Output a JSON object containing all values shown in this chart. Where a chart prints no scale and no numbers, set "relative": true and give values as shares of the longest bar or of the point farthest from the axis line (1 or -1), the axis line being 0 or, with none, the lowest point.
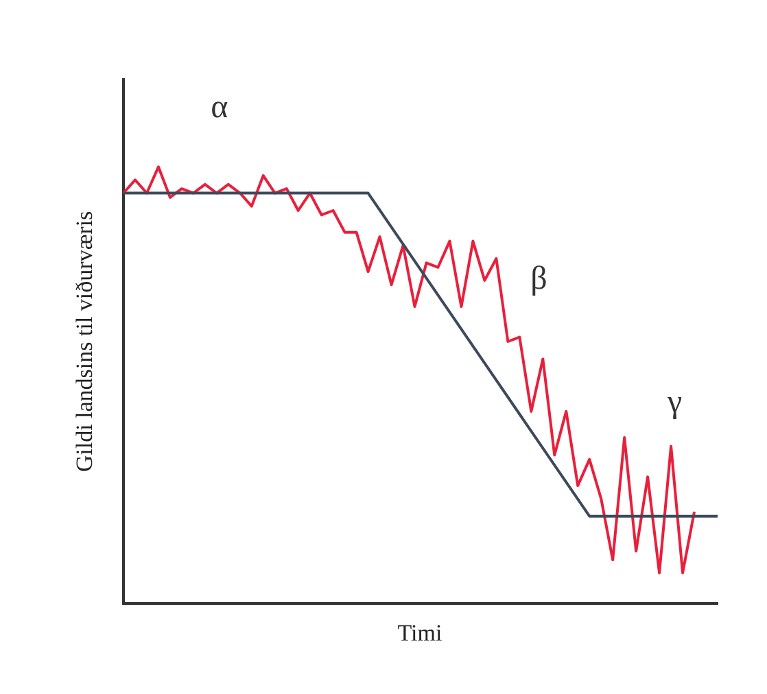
{
  "chart_data": {
    "type": "line",
    "relative": true,
    "marker": "none",
    "xlabel": "Timi",
    "ylabel": "Gildi landsins til viðurværis",
    "annotations": [
      "α",
      "β",
      "γ"
    ],
    "categories": [
      null,
      null,
      null,
      null,
      null,
      null,
      null,
      null,
      null,
      null,
      null,
      null,
      null,
      null,
      null,
      null,
      null,
      null,
      null,
      null,
      null,
      null,
      null,
      null,
      null,
      null,
      null,
      null,
      null,
      null,
      null,
      null,
      null,
      null,
      null,
      null,
      null,
      null,
      null,
      null,
      null,
      null,
      null,
      null,
      null,
      null,
      null,
      null,
      null,
      null,
      null,
      null
    ],
    "series": [
      {
        "color": "#3d4a5c",
        "values": [
          0.94,
          null,
          null,
          null,
          null,
          null,
          null,
          null,
          null,
          null,
          null,
          null,
          null,
          null,
          null,
          null,
          null,
          null,
          null,
          null,
          null,
          0.94,
          null,
          null,
          null,
          null,
          null,
          null,
          null,
          null,
          null,
          null,
          null,
          null,
          null,
          null,
          null,
          null,
          null,
          null,
          0.2,
          null,
          null,
          null,
          null,
          null,
          null,
          null,
          null,
          null,
          null,
          0.2
        ]
      },
      {
        "color": "#e8203c",
        "values": [
          0.94,
          0.97,
          0.94,
          1.0,
          0.93,
          0.95,
          0.94,
          0.96,
          0.94,
          0.96,
          0.94,
          0.91,
          0.98,
          0.94,
          0.95,
          0.9,
          0.94,
          0.89,
          0.9,
          0.85,
          0.85,
          0.76,
          0.84,
          0.73,
          0.82,
          0.68,
          0.78,
          0.77,
          0.83,
          0.68,
          0.83,
          0.74,
          0.79,
          0.6,
          0.61,
          0.44,
          0.56,
          0.34,
          0.44,
          0.27,
          0.33,
          0.24,
          0.1,
          0.38,
          0.12,
          0.29,
          0.07,
          0.36,
          0.07,
          0.21,
          null,
          null
        ]
      }
    ]
  }
}
